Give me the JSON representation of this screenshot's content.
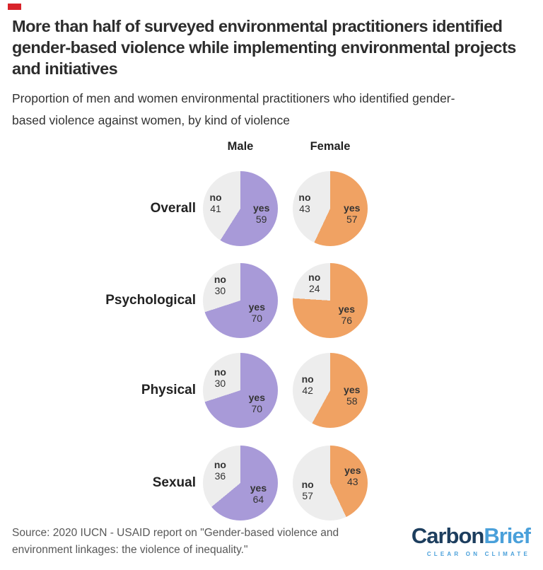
{
  "brand": {
    "red_tag_color": "#d8232a"
  },
  "header": {
    "title_lines": [
      "More than half of surveyed environmental practitioners identified",
      "gender-based violence while implementing environmental projects",
      "and initiatives"
    ],
    "subtitle_lines": [
      "Proportion of men and women environmental practitioners who identified gender-",
      "based violence against women, by kind of violence"
    ]
  },
  "chart_data": {
    "type": "pie",
    "title": "More than half of surveyed environmental practitioners identified gender-based violence while implementing environmental projects and initiatives",
    "subtitle": "Proportion of men and women environmental practitioners who identified gender-based violence against women, by kind of violence",
    "unit": "percent",
    "columns": [
      "Male",
      "Female"
    ],
    "labels": {
      "yes": "yes",
      "no": "no"
    },
    "colors": {
      "male_yes": "#a89ad8",
      "female_yes": "#f0a263",
      "no_slice": "#ededed"
    },
    "rows": [
      {
        "category": "Overall",
        "male": {
          "yes": 59,
          "no": 41
        },
        "female": {
          "yes": 57,
          "no": 43
        }
      },
      {
        "category": "Psychological",
        "male": {
          "yes": 70,
          "no": 30
        },
        "female": {
          "yes": 76,
          "no": 24
        }
      },
      {
        "category": "Physical",
        "male": {
          "yes": 70,
          "no": 30
        },
        "female": {
          "yes": 58,
          "no": 42
        }
      },
      {
        "category": "Sexual",
        "male": {
          "yes": 64,
          "no": 36
        },
        "female": {
          "yes": 43,
          "no": 57
        }
      }
    ]
  },
  "footer": {
    "source_lines": [
      "Source: 2020 IUCN - USAID report on \"Gender-based violence and",
      "environment linkages: the violence of inequality.\""
    ],
    "logo": {
      "carbon": "Carbon",
      "brief": "Brief",
      "tagline": "CLEAR ON CLIMATE",
      "carbon_color": "#1d3e5e",
      "brief_color": "#4aa0da"
    }
  }
}
